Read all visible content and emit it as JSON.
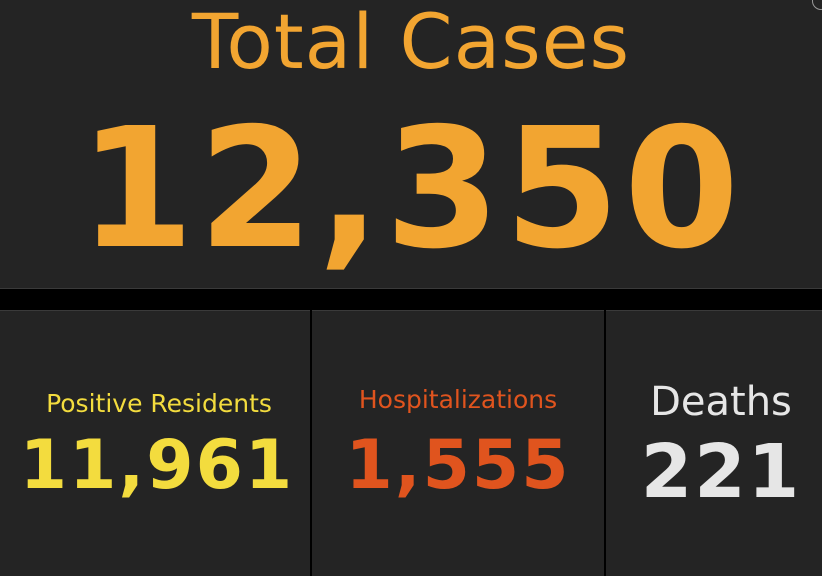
{
  "total": {
    "title": "Total Cases",
    "value": "12,350",
    "color": "#F2A531"
  },
  "stats": [
    {
      "label": "Positive Residents",
      "value": "11,961",
      "color": "#F3DC3E"
    },
    {
      "label": "Hospitalizations",
      "value": "1,555",
      "color": "#E0541E"
    },
    {
      "label": "Deaths",
      "value": "221",
      "color": "#E6E6E6"
    }
  ],
  "colors": {
    "background": "#000000",
    "panel": "#242424",
    "divider": "#3a3a3a"
  }
}
